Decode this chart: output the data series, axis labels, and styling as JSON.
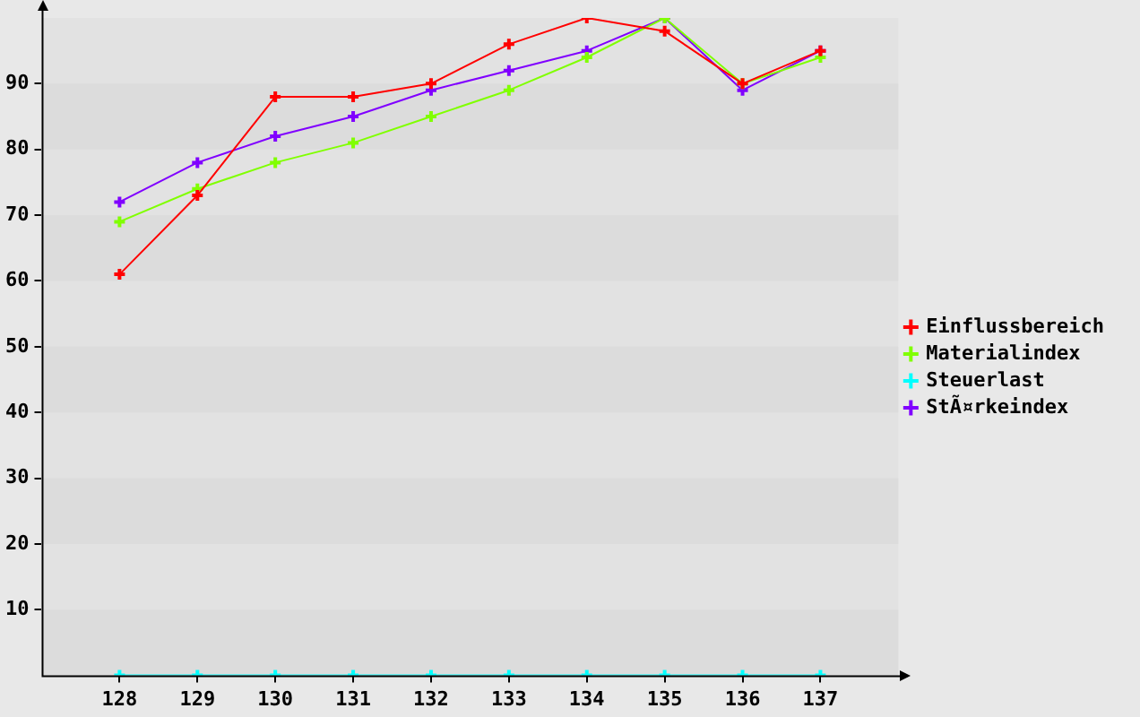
{
  "chart_data": {
    "type": "line",
    "categories": [
      "128",
      "129",
      "130",
      "131",
      "132",
      "133",
      "134",
      "135",
      "136",
      "137"
    ],
    "series": [
      {
        "name": "Einflussbereich",
        "color": "#ff0000",
        "values": [
          61,
          73,
          88,
          88,
          90,
          96,
          100,
          98,
          90,
          95
        ]
      },
      {
        "name": "Materialindex",
        "color": "#80ff00",
        "values": [
          69,
          74,
          78,
          81,
          85,
          89,
          94,
          100,
          90,
          94
        ]
      },
      {
        "name": "Steuerlast",
        "color": "#00ffff",
        "values": [
          0,
          0,
          0,
          0,
          0,
          0,
          0,
          0,
          0,
          0
        ]
      },
      {
        "name": "StÃ¤rkeindex",
        "color": "#8000ff",
        "values": [
          72,
          78,
          82,
          85,
          89,
          92,
          95,
          100,
          89,
          95
        ]
      }
    ],
    "ylim": [
      0,
      100
    ],
    "yticks": [
      10,
      20,
      30,
      40,
      50,
      60,
      70,
      80,
      90
    ],
    "legend": "right",
    "marker": "cross",
    "line_style": "solid"
  }
}
